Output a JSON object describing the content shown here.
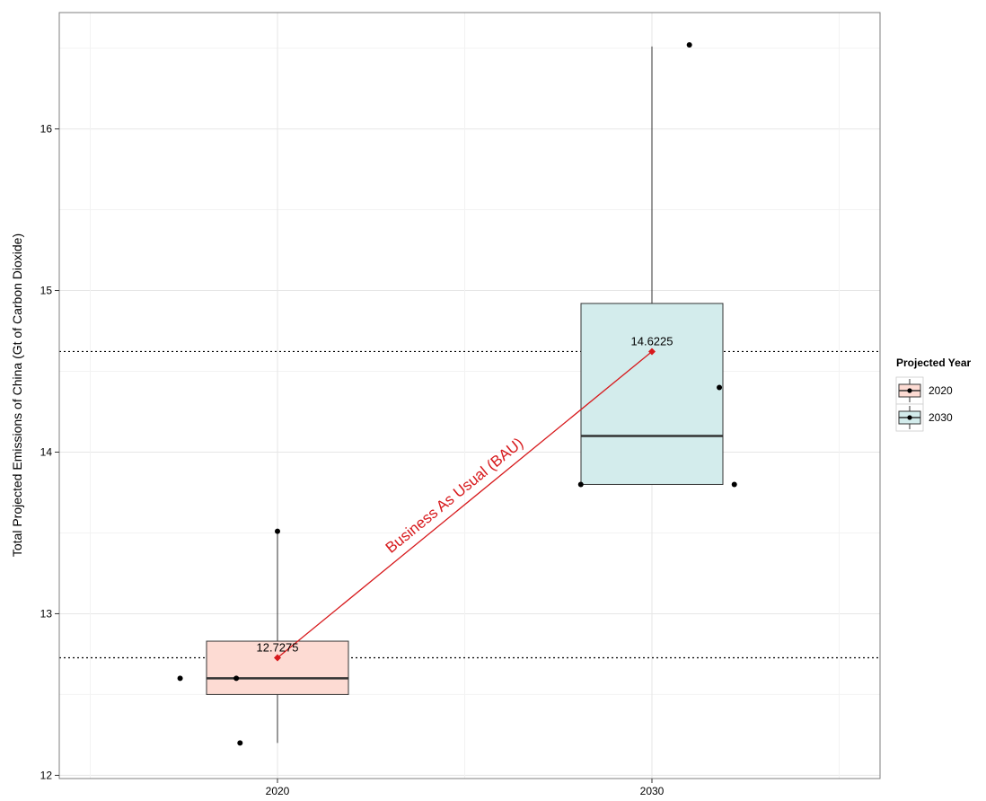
{
  "chart_data": {
    "type": "box",
    "ylabel": "Total Projected Emissions of China (Gt of Carbon Dioxide)",
    "xlabel": "",
    "categories": [
      "2020",
      "2030"
    ],
    "ylim": [
      11.98,
      16.72
    ],
    "yticks": [
      12,
      13,
      14,
      15,
      16
    ],
    "grid": true,
    "boxes": [
      {
        "category": "2020",
        "min": 12.2,
        "q1": 12.5,
        "median": 12.6,
        "q3": 12.83,
        "max": 13.5,
        "fill": "#fddbd3",
        "points": [
          {
            "dx": -0.26,
            "y": 12.6
          },
          {
            "dx": -0.11,
            "y": 12.6
          },
          {
            "dx": -0.1,
            "y": 12.2
          },
          {
            "dx": 0.0,
            "y": 13.51
          }
        ]
      },
      {
        "category": "2030",
        "min": 13.8,
        "q1": 13.8,
        "median": 14.1,
        "q3": 14.92,
        "max": 16.51,
        "fill": "#d3ecec",
        "points": [
          {
            "dx": -0.19,
            "y": 13.8
          },
          {
            "dx": 0.1,
            "y": 16.52
          },
          {
            "dx": 0.18,
            "y": 14.4
          },
          {
            "dx": 0.22,
            "y": 13.8
          }
        ]
      }
    ],
    "reference_lines": [
      12.7275,
      14.6225
    ],
    "trend": {
      "label": "Business As Usual (BAU)",
      "color": "#d7191c",
      "points": [
        {
          "category": "2020",
          "y": 12.7275,
          "label": "12.7275"
        },
        {
          "category": "2030",
          "y": 14.6225,
          "label": "14.6225"
        }
      ]
    },
    "legend": {
      "title": "Projected Year",
      "placement": "right",
      "entries": [
        {
          "label": "2020",
          "fill": "#fddbd3"
        },
        {
          "label": "2030",
          "fill": "#d3ecec"
        }
      ]
    }
  }
}
